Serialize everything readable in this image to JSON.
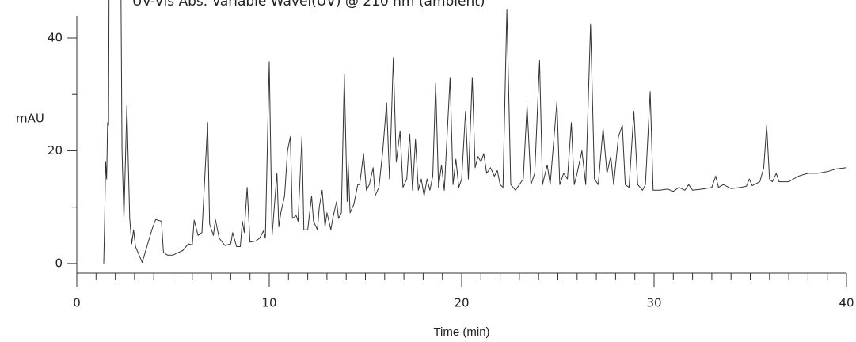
{
  "chart_data": {
    "type": "line",
    "title": "UV-Vis Abs. Variable Wavel(UV) @ 210 nm (ambient)",
    "x_label": "Time (min)",
    "y_label": "mAU",
    "xlim": [
      0,
      40
    ],
    "ylim": [
      -1.7,
      44
    ],
    "xticks": [
      0,
      10,
      20,
      30,
      40
    ],
    "xminorticks": [
      1,
      2,
      3,
      4,
      5,
      6,
      7,
      8,
      9,
      11,
      12,
      13,
      14,
      15,
      16,
      17,
      18,
      19,
      21,
      22,
      23,
      24,
      25,
      26,
      27,
      28,
      29,
      31,
      32,
      33,
      34,
      35,
      36,
      37,
      38,
      39
    ],
    "yticks": [
      0,
      20,
      40
    ],
    "yminorticks": [
      10,
      30
    ],
    "color": "#333333",
    "x": [
      1.4,
      1.45,
      1.5,
      1.55,
      1.6,
      1.65,
      1.7,
      2.25,
      2.35,
      2.45,
      2.6,
      2.75,
      2.85,
      2.95,
      3.05,
      3.4,
      3.9,
      4.1,
      4.4,
      4.5,
      4.7,
      5.0,
      5.5,
      5.8,
      6.0,
      6.1,
      6.3,
      6.5,
      6.8,
      6.9,
      7.1,
      7.2,
      7.4,
      7.7,
      8.0,
      8.1,
      8.3,
      8.5,
      8.6,
      8.7,
      8.85,
      9.0,
      9.3,
      9.5,
      9.7,
      9.8,
      10.0,
      10.15,
      10.4,
      10.5,
      10.6,
      10.8,
      10.95,
      11.1,
      11.2,
      11.4,
      11.5,
      11.7,
      11.8,
      12.0,
      12.2,
      12.3,
      12.5,
      12.6,
      12.75,
      12.9,
      13.0,
      13.2,
      13.3,
      13.5,
      13.6,
      13.75,
      13.9,
      14.05,
      14.1,
      14.2,
      14.4,
      14.6,
      14.7,
      14.9,
      15.05,
      15.2,
      15.4,
      15.5,
      15.7,
      15.9,
      16.1,
      16.25,
      16.45,
      16.6,
      16.8,
      16.95,
      17.15,
      17.3,
      17.45,
      17.6,
      17.75,
      17.9,
      18.05,
      18.2,
      18.35,
      18.5,
      18.65,
      18.8,
      18.95,
      19.1,
      19.4,
      19.55,
      19.7,
      19.85,
      20.0,
      20.2,
      20.35,
      20.55,
      20.7,
      20.85,
      21.0,
      21.15,
      21.3,
      21.5,
      21.7,
      21.85,
      22.0,
      22.15,
      22.35,
      22.55,
      22.8,
      23.0,
      23.2,
      23.4,
      23.6,
      23.8,
      24.05,
      24.2,
      24.45,
      24.6,
      24.95,
      25.1,
      25.3,
      25.5,
      25.7,
      25.85,
      26.0,
      26.25,
      26.45,
      26.7,
      26.9,
      27.1,
      27.35,
      27.55,
      27.75,
      27.9,
      28.15,
      28.35,
      28.5,
      28.7,
      28.95,
      29.15,
      29.4,
      29.55,
      29.8,
      29.95,
      30.3,
      30.7,
      31.0,
      31.3,
      31.6,
      31.8,
      32.0,
      32.5,
      33.0,
      33.2,
      33.35,
      33.6,
      34.0,
      34.5,
      34.8,
      34.95,
      35.1,
      35.5,
      35.7,
      35.85,
      36.0,
      36.15,
      36.35,
      36.5,
      37,
      37.5,
      38,
      38.5,
      39,
      39.5,
      40
    ],
    "values": [
      0,
      8,
      18,
      15,
      25,
      24.5,
      70,
      70,
      20,
      8,
      28,
      8,
      3.5,
      6,
      3,
      0.2,
      6,
      7.8,
      7.5,
      2,
      1.5,
      1.5,
      2.3,
      3.5,
      3.3,
      7.7,
      5,
      5.5,
      25,
      7,
      5,
      7.8,
      4.5,
      3.2,
      3.5,
      5.5,
      3,
      3,
      7.5,
      5.5,
      13.5,
      3.8,
      4,
      4.5,
      5.8,
      4.5,
      35.8,
      5,
      16,
      6.5,
      9,
      12,
      20,
      22.5,
      8,
      8.5,
      7.5,
      22.5,
      6,
      6,
      12,
      7.5,
      6,
      10,
      13,
      6.5,
      9,
      6,
      8,
      11,
      8,
      9,
      33.5,
      11,
      18,
      9,
      10.5,
      14,
      14,
      19.5,
      13,
      14,
      17,
      12,
      13.5,
      20,
      28.5,
      15,
      36.5,
      18,
      23.5,
      13.5,
      15,
      23,
      13,
      22,
      13,
      15,
      12,
      15,
      13,
      15.5,
      32,
      13.5,
      17.5,
      13,
      33,
      14,
      18.5,
      13.5,
      15,
      27,
      15,
      33,
      17,
      19,
      18,
      19.5,
      16,
      17,
      15.5,
      16.5,
      14,
      13.5,
      45,
      14,
      13,
      14,
      15,
      28,
      14,
      16,
      36,
      14,
      17.5,
      14,
      28.7,
      14,
      16,
      15,
      25,
      14,
      16,
      20,
      14,
      42.5,
      15,
      14,
      24,
      16,
      19,
      14,
      22.5,
      24.5,
      14,
      13.5,
      27,
      14,
      13,
      14,
      30.5,
      13,
      13,
      13.2,
      12.8,
      13.5,
      13,
      14,
      13,
      13.2,
      13.5,
      15.5,
      13.5,
      14,
      13.3,
      13.5,
      13.7,
      15,
      13.8,
      14.5,
      17,
      24.5,
      15,
      14.5,
      16,
      14.5,
      14.5,
      15.5,
      16,
      16,
      16.3,
      16.8,
      17
    ]
  }
}
